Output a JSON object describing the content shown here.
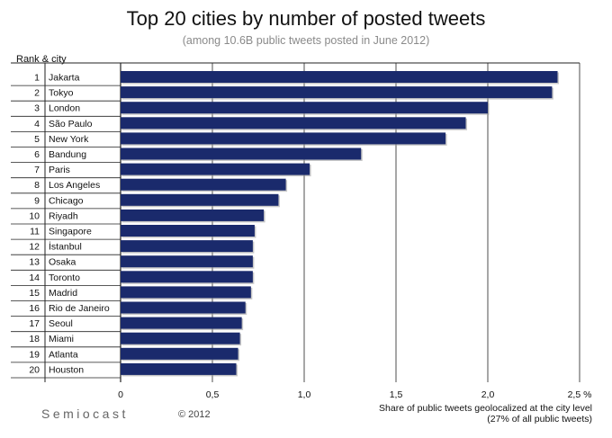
{
  "chart_data": {
    "type": "bar",
    "orientation": "horizontal",
    "title": "Top 20 cities by number of posted tweets",
    "subtitle": "(among 10.6B public tweets posted in June 2012)",
    "ylabel": "Rank & city",
    "xlabel_line1": "Share of public tweets geolocalized at the city level",
    "xlabel_line2": "(27% of all public tweets)",
    "xlim": [
      0,
      2.5
    ],
    "xticks": [
      {
        "value": 0,
        "label": "0"
      },
      {
        "value": 0.5,
        "label": "0,5"
      },
      {
        "value": 1.0,
        "label": "1,0"
      },
      {
        "value": 1.5,
        "label": "1,5"
      },
      {
        "value": 2.0,
        "label": "2,0"
      },
      {
        "value": 2.5,
        "label": "2,5 %"
      }
    ],
    "grid": true,
    "bar_color": "#1a2a6c",
    "ranks": [
      "1",
      "2",
      "3",
      "4",
      "5",
      "6",
      "7",
      "8",
      "9",
      "10",
      "11",
      "12",
      "13",
      "14",
      "15",
      "16",
      "17",
      "18",
      "19",
      "20"
    ],
    "categories": [
      "Jakarta",
      "Tokyo",
      "London",
      "São Paulo",
      "New York",
      "Bandung",
      "Paris",
      "Los Angeles",
      "Chicago",
      "Riyadh",
      "Singapore",
      "İstanbul",
      "Osaka",
      "Toronto",
      "Madrid",
      "Rio de Janeiro",
      "Seoul",
      "Miami",
      "Atlanta",
      "Houston"
    ],
    "values": [
      2.38,
      2.35,
      2.0,
      1.88,
      1.77,
      1.31,
      1.03,
      0.9,
      0.86,
      0.78,
      0.73,
      0.72,
      0.72,
      0.72,
      0.71,
      0.68,
      0.66,
      0.65,
      0.64,
      0.63
    ]
  },
  "footer": {
    "brand": "Semiocast",
    "copyright": "© 2012"
  }
}
